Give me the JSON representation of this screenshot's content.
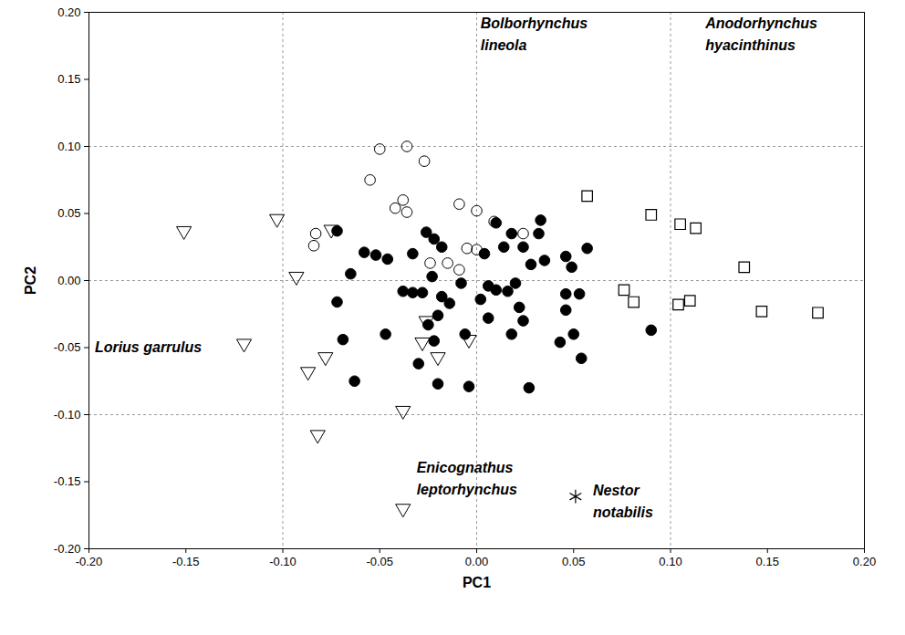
{
  "chart_data": {
    "type": "scatter",
    "x_label": "PC1",
    "y_label": "PC2",
    "xlim": [
      -0.2,
      0.2
    ],
    "ylim": [
      -0.2,
      0.2
    ],
    "xticks": [
      {
        "value": -0.2,
        "label": "-0.20"
      },
      {
        "value": -0.15,
        "label": "-0.15"
      },
      {
        "value": -0.1,
        "label": "-0.10"
      },
      {
        "value": -0.05,
        "label": "-0.05"
      },
      {
        "value": 0,
        "label": "0.00"
      },
      {
        "value": 0.05,
        "label": "0.05"
      },
      {
        "value": 0.1,
        "label": "0.10"
      },
      {
        "value": 0.15,
        "label": "0.15"
      },
      {
        "value": 0.2,
        "label": "0.20"
      }
    ],
    "yticks": [
      {
        "value": -0.2,
        "label": "-0.20"
      },
      {
        "value": -0.15,
        "label": "-0.15"
      },
      {
        "value": -0.1,
        "label": "-0.10"
      },
      {
        "value": -0.05,
        "label": "-0.05"
      },
      {
        "value": 0,
        "label": "0.00"
      },
      {
        "value": 0.05,
        "label": "0.05"
      },
      {
        "value": 0.1,
        "label": "0.10"
      },
      {
        "value": 0.15,
        "label": "0.15"
      },
      {
        "value": 0.2,
        "label": "0.20"
      }
    ],
    "grid": true,
    "series": [
      {
        "marker": "circle-open",
        "color": "#000000",
        "x": [
          -0.05,
          -0.036,
          -0.027,
          -0.055,
          -0.038,
          -0.042,
          -0.036,
          -0.083,
          -0.084,
          -0.009,
          0.0,
          0.009,
          0.024,
          -0.005,
          0.0,
          -0.024,
          -0.015,
          -0.009
        ],
        "y": [
          0.098,
          0.1,
          0.089,
          0.075,
          0.06,
          0.054,
          0.051,
          0.035,
          0.026,
          0.057,
          0.052,
          0.044,
          0.035,
          0.024,
          0.023,
          0.013,
          0.013,
          0.008
        ]
      },
      {
        "marker": "circle",
        "color": "#000000",
        "x": [
          -0.072,
          -0.058,
          -0.052,
          -0.046,
          -0.065,
          -0.038,
          -0.033,
          -0.026,
          -0.022,
          -0.018,
          -0.023,
          -0.033,
          -0.028,
          -0.018,
          -0.014,
          -0.008,
          -0.006,
          -0.02,
          -0.025,
          -0.022,
          -0.03,
          0.01,
          0.018,
          0.014,
          0.024,
          0.033,
          0.032,
          0.028,
          0.035,
          0.004,
          0.006,
          0.01,
          0.016,
          0.002,
          0.02,
          0.022,
          0.024,
          0.018,
          0.006,
          0.046,
          0.057,
          0.049,
          0.046,
          0.046,
          0.053,
          0.05,
          0.043,
          0.054,
          0.027,
          -0.004,
          -0.02,
          -0.063,
          -0.072,
          -0.069,
          -0.047,
          0.09
        ],
        "y": [
          0.037,
          0.021,
          0.019,
          0.016,
          0.005,
          -0.008,
          0.02,
          0.036,
          0.031,
          0.025,
          0.003,
          -0.009,
          -0.009,
          -0.012,
          -0.017,
          -0.002,
          -0.04,
          -0.026,
          -0.033,
          -0.045,
          -0.062,
          0.043,
          0.035,
          0.025,
          0.025,
          0.045,
          0.035,
          0.012,
          0.015,
          0.02,
          -0.004,
          -0.007,
          -0.008,
          -0.014,
          -0.002,
          -0.02,
          -0.03,
          -0.04,
          -0.028,
          0.018,
          0.024,
          0.01,
          -0.01,
          -0.022,
          -0.01,
          -0.04,
          -0.046,
          -0.058,
          -0.08,
          -0.079,
          -0.077,
          -0.075,
          -0.016,
          -0.044,
          -0.04,
          -0.037
        ]
      },
      {
        "marker": "triangle-down-open",
        "color": "#000000",
        "x": [
          -0.151,
          -0.103,
          -0.075,
          -0.093,
          -0.12,
          -0.078,
          -0.087,
          -0.026,
          -0.028,
          -0.02,
          -0.004,
          -0.038,
          -0.082,
          -0.038
        ],
        "y": [
          0.037,
          0.046,
          0.038,
          0.003,
          -0.047,
          -0.057,
          -0.068,
          -0.03,
          -0.046,
          -0.057,
          -0.044,
          -0.097,
          -0.115,
          -0.17
        ]
      },
      {
        "marker": "square-open",
        "color": "#000000",
        "x": [
          0.057,
          0.09,
          0.105,
          0.113,
          0.138,
          0.076,
          0.081,
          0.11,
          0.104,
          0.147,
          0.176
        ],
        "y": [
          0.063,
          0.049,
          0.042,
          0.039,
          0.01,
          -0.007,
          -0.016,
          -0.015,
          -0.018,
          -0.023,
          -0.024
        ]
      },
      {
        "marker": "asterisk",
        "color": "#000000",
        "x": [
          0.051
        ],
        "y": [
          -0.161
        ]
      }
    ],
    "annotations": [
      {
        "text": "Bolborhynchus\nlineola",
        "x": 0.002,
        "y": 0.185
      },
      {
        "text": "Anodorhynchus\nhyacinthinus",
        "x": 0.118,
        "y": 0.185
      },
      {
        "text": "Lorius garrulus",
        "x": -0.197,
        "y": -0.048
      },
      {
        "text": "Enicognathus\nleptorhynchus",
        "x": -0.031,
        "y": -0.146
      },
      {
        "text": "Nestor\nnotabilis",
        "x": 0.06,
        "y": -0.163
      }
    ]
  }
}
